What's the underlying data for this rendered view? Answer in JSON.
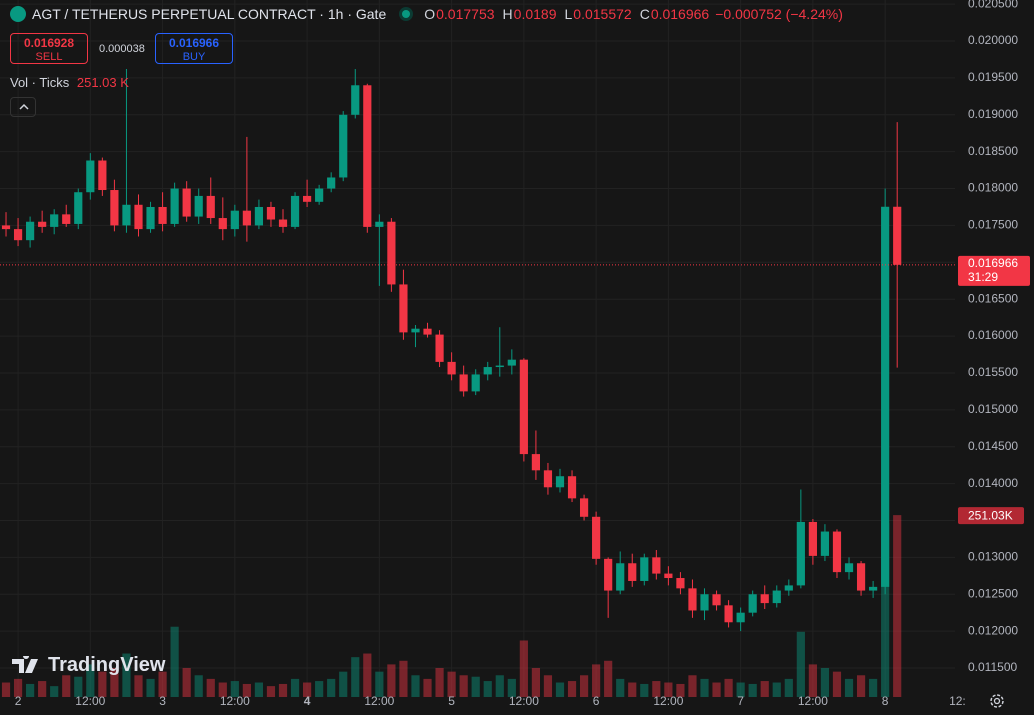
{
  "toolbar": {
    "title": "AGT / TETHERUS PERPETUAL CONTRACT · 1h · Gate",
    "o": "O",
    "h": "H",
    "l": "L",
    "c": "C",
    "change": "−0.000752 (−4.24%)",
    "sell_price": 0.016928,
    "sell": "SELL",
    "spread": 3.8e-05,
    "buy_price": 0.016966,
    "buy": "BUY",
    "vol_label": "Vol · Ticks",
    "vol_value": "251.03 K",
    "watermark": "TradingView",
    "countdown": "31:29",
    "volume_tag": "251.03K"
  },
  "chart_data": {
    "type": "candlestick",
    "up_color": "#089981",
    "down_color": "#f23645",
    "grid": true,
    "x": [
      -2,
      0,
      2,
      4,
      6,
      8,
      10,
      12,
      14,
      16,
      18,
      20,
      22,
      24,
      26,
      28,
      30,
      32,
      34,
      36,
      38,
      40,
      42,
      44,
      46,
      48,
      50,
      52,
      54,
      56,
      58,
      60,
      62,
      64,
      66,
      68,
      70,
      72,
      74,
      76,
      78,
      80,
      82,
      84,
      86,
      88,
      90,
      92,
      94,
      96,
      98,
      100,
      102,
      104,
      106,
      108,
      110,
      112,
      114,
      116,
      118,
      120,
      122,
      124,
      126,
      128,
      130,
      132,
      134,
      136,
      138,
      140,
      142,
      144,
      146
    ],
    "open": [
      0.0175,
      0.01745,
      0.0173,
      0.01755,
      0.01748,
      0.01765,
      0.01752,
      0.01795,
      0.01838,
      0.01798,
      0.0175,
      0.01778,
      0.01745,
      0.01775,
      0.01752,
      0.018,
      0.01762,
      0.0179,
      0.0176,
      0.01745,
      0.0177,
      0.0175,
      0.01775,
      0.01758,
      0.01748,
      0.0179,
      0.01782,
      0.018,
      0.01815,
      0.019,
      0.0194,
      0.01748,
      0.01755,
      0.0167,
      0.01605,
      0.0161,
      0.01602,
      0.01565,
      0.01548,
      0.01525,
      0.01548,
      0.01558,
      0.0156,
      0.01568,
      0.0144,
      0.01418,
      0.01395,
      0.0141,
      0.0138,
      0.01355,
      0.01298,
      0.01255,
      0.01292,
      0.01268,
      0.013,
      0.01278,
      0.01272,
      0.01258,
      0.01228,
      0.0125,
      0.01235,
      0.01212,
      0.01225,
      0.0125,
      0.01238,
      0.01255,
      0.01262,
      0.01348,
      0.01302,
      0.01335,
      0.0128,
      0.01292,
      0.01255,
      0.0126,
      0.017753
    ],
    "high": [
      0.01768,
      0.0176,
      0.01762,
      0.0177,
      0.01772,
      0.01778,
      0.018,
      0.01848,
      0.01842,
      0.01812,
      0.01962,
      0.01792,
      0.01782,
      0.01795,
      0.01808,
      0.0181,
      0.018,
      0.01815,
      0.01788,
      0.01778,
      0.0187,
      0.01785,
      0.01782,
      0.01772,
      0.01795,
      0.01812,
      0.01805,
      0.01822,
      0.01905,
      0.01962,
      0.01942,
      0.01765,
      0.0176,
      0.0169,
      0.01615,
      0.01618,
      0.01608,
      0.01578,
      0.0156,
      0.01555,
      0.01565,
      0.01612,
      0.01582,
      0.0157,
      0.01472,
      0.01428,
      0.0142,
      0.01418,
      0.01385,
      0.01362,
      0.013,
      0.01308,
      0.01305,
      0.01305,
      0.0131,
      0.01288,
      0.0128,
      0.0127,
      0.01258,
      0.01255,
      0.01242,
      0.01232,
      0.01255,
      0.01262,
      0.01262,
      0.0127,
      0.01392,
      0.01352,
      0.01345,
      0.01338,
      0.013,
      0.01295,
      0.01268,
      0.018,
      0.0189
    ],
    "low": [
      0.01735,
      0.01722,
      0.0172,
      0.0174,
      0.01738,
      0.01748,
      0.01745,
      0.01785,
      0.0179,
      0.01742,
      0.0174,
      0.01735,
      0.0174,
      0.01742,
      0.01748,
      0.01755,
      0.01752,
      0.01752,
      0.0173,
      0.01735,
      0.01728,
      0.01745,
      0.01748,
      0.0174,
      0.01745,
      0.01775,
      0.01778,
      0.01795,
      0.0181,
      0.01895,
      0.0174,
      0.01668,
      0.0166,
      0.01595,
      0.01585,
      0.01598,
      0.01558,
      0.0154,
      0.01518,
      0.0152,
      0.0154,
      0.01545,
      0.01548,
      0.0143,
      0.01405,
      0.01385,
      0.01388,
      0.01375,
      0.0135,
      0.0129,
      0.01218,
      0.0125,
      0.0126,
      0.01262,
      0.0127,
      0.01262,
      0.0125,
      0.01218,
      0.01215,
      0.01228,
      0.01205,
      0.012,
      0.0122,
      0.0123,
      0.01232,
      0.01248,
      0.01258,
      0.0129,
      0.01295,
      0.01272,
      0.0127,
      0.01248,
      0.01245,
      0.0125,
      0.015572
    ],
    "close": [
      0.01745,
      0.0173,
      0.01755,
      0.01748,
      0.01765,
      0.01752,
      0.01795,
      0.01838,
      0.01798,
      0.0175,
      0.01778,
      0.01745,
      0.01775,
      0.01752,
      0.018,
      0.01762,
      0.0179,
      0.0176,
      0.01745,
      0.0177,
      0.0175,
      0.01775,
      0.01758,
      0.01748,
      0.0179,
      0.01782,
      0.018,
      0.01815,
      0.019,
      0.0194,
      0.01748,
      0.01755,
      0.0167,
      0.01605,
      0.0161,
      0.01602,
      0.01565,
      0.01548,
      0.01525,
      0.01548,
      0.01558,
      0.0156,
      0.01568,
      0.0144,
      0.01418,
      0.01395,
      0.0141,
      0.0138,
      0.01355,
      0.01298,
      0.01255,
      0.01292,
      0.01268,
      0.013,
      0.01278,
      0.01272,
      0.01258,
      0.01228,
      0.0125,
      0.01235,
      0.01212,
      0.01225,
      0.0125,
      0.01238,
      0.01255,
      0.01262,
      0.01348,
      0.01302,
      0.01335,
      0.0128,
      0.01292,
      0.01255,
      0.0126,
      0.017753,
      0.016966
    ],
    "volume": [
      20,
      25,
      18,
      22,
      15,
      30,
      28,
      45,
      35,
      40,
      60,
      30,
      25,
      35,
      97,
      40,
      30,
      25,
      20,
      22,
      18,
      20,
      15,
      18,
      25,
      20,
      22,
      25,
      35,
      55,
      60,
      35,
      45,
      50,
      30,
      25,
      40,
      35,
      30,
      28,
      22,
      30,
      25,
      78,
      40,
      30,
      20,
      22,
      30,
      45,
      50,
      25,
      20,
      18,
      22,
      20,
      18,
      30,
      25,
      20,
      25,
      20,
      18,
      22,
      20,
      25,
      90,
      45,
      40,
      35,
      25,
      30,
      25,
      240,
      251.03
    ],
    "xlim": [
      -3,
      155.6
    ],
    "xticks": [
      {
        "value": 0,
        "label": "2"
      },
      {
        "value": 12,
        "label": "12:00"
      },
      {
        "value": 24,
        "label": "3"
      },
      {
        "value": 36,
        "label": "12:00"
      },
      {
        "value": 48,
        "label": "4"
      },
      {
        "value": 60,
        "label": "12:00"
      },
      {
        "value": 72,
        "label": "5"
      },
      {
        "value": 84,
        "label": "12:00"
      },
      {
        "value": 96,
        "label": "6"
      },
      {
        "value": 108,
        "label": "12:00"
      },
      {
        "value": 120,
        "label": "7"
      },
      {
        "value": 132,
        "label": "12:00"
      },
      {
        "value": 144,
        "label": "8"
      },
      {
        "value": 156,
        "label": "12:"
      }
    ],
    "ylim": [
      0.011107,
      0.020556
    ],
    "yticks": [
      {
        "value": 0.0115,
        "label": "0.011500"
      },
      {
        "value": 0.012,
        "label": "0.012000"
      },
      {
        "value": 0.0125,
        "label": "0.012500"
      },
      {
        "value": 0.013,
        "label": "0.013000"
      },
      {
        "value": 0.0135,
        "label": "0.013500"
      },
      {
        "value": 0.014,
        "label": "0.014000"
      },
      {
        "value": 0.0145,
        "label": "0.014500"
      },
      {
        "value": 0.015,
        "label": "0.015000"
      },
      {
        "value": 0.0155,
        "label": "0.015500"
      },
      {
        "value": 0.016,
        "label": "0.016000"
      },
      {
        "value": 0.0165,
        "label": "0.016500"
      },
      {
        "value": 0.017,
        "label": "0.017000"
      },
      {
        "value": 0.0175,
        "label": "0.017500"
      },
      {
        "value": 0.018,
        "label": "0.018000"
      },
      {
        "value": 0.0185,
        "label": "0.018500"
      },
      {
        "value": 0.019,
        "label": "0.019000"
      },
      {
        "value": 0.0195,
        "label": "0.019500"
      },
      {
        "value": 0.02,
        "label": "0.020000"
      },
      {
        "value": 0.0205,
        "label": "0.020500"
      }
    ],
    "volume_lim": [
      0,
      962
    ]
  }
}
